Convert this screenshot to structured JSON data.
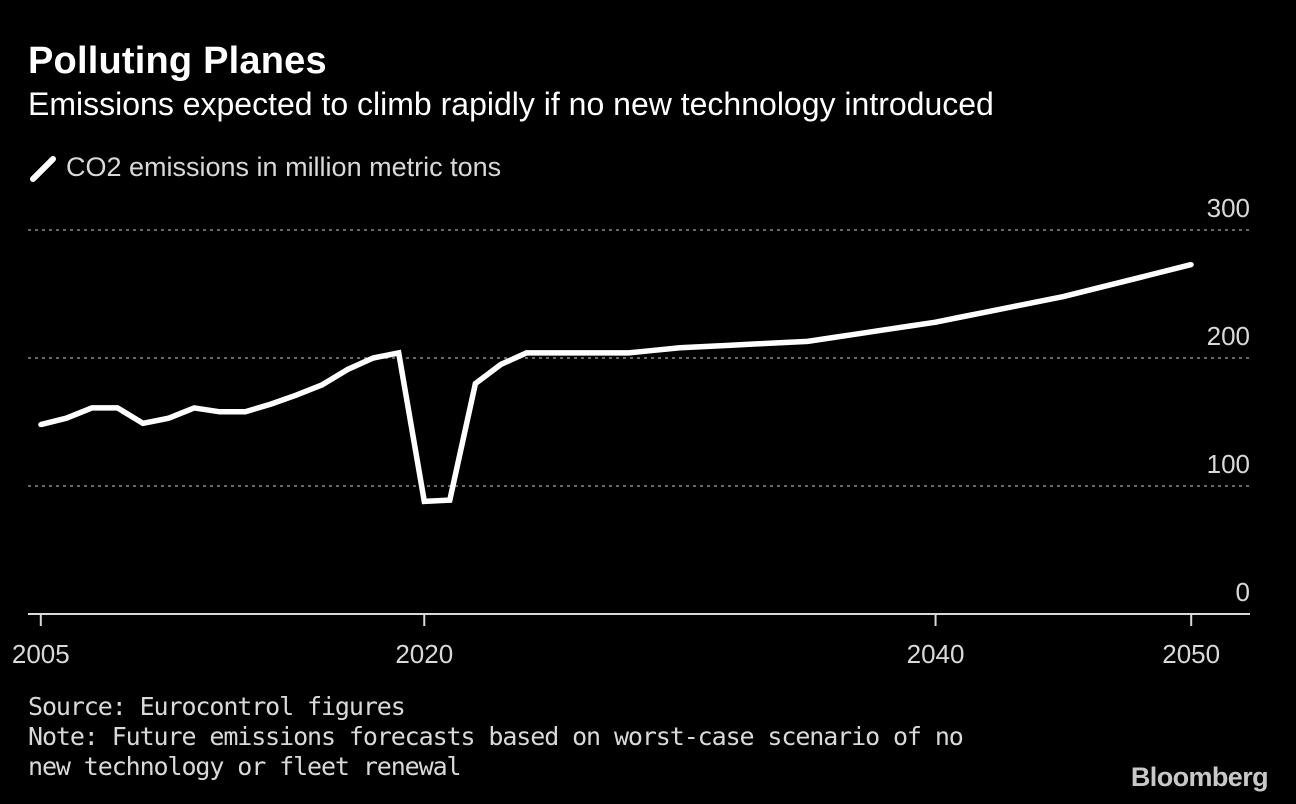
{
  "chart_data": {
    "type": "line",
    "title": "Polluting Planes",
    "subtitle": "Emissions expected to climb rapidly if no new technology introduced",
    "legend": [
      "CO2 emissions in million metric tons"
    ],
    "legend_position": "top-left",
    "x_ticks": [
      2005,
      2020,
      2040,
      2050
    ],
    "y_ticks": [
      0,
      100,
      200,
      300
    ],
    "xlim": [
      2004.5,
      2052.3
    ],
    "ylim": [
      0,
      300
    ],
    "grid": true,
    "color": "#ffffff",
    "series": [
      {
        "name": "CO2 emissions in million metric tons",
        "x": [
          2005,
          2006,
          2007,
          2008,
          2009,
          2010,
          2011,
          2012,
          2013,
          2014,
          2015,
          2016,
          2017,
          2018,
          2019,
          2020,
          2021,
          2022,
          2023,
          2024,
          2025,
          2026,
          2027,
          2028,
          2029,
          2030,
          2031,
          2032,
          2033,
          2034,
          2035,
          2036,
          2037,
          2038,
          2039,
          2040,
          2041,
          2042,
          2043,
          2044,
          2045,
          2046,
          2047,
          2048,
          2049,
          2050
        ],
        "values": [
          148,
          153,
          161,
          161,
          149,
          153,
          161,
          158,
          158,
          164,
          171,
          179,
          191,
          200,
          204,
          88,
          89,
          180,
          195,
          204,
          204,
          204,
          204,
          204,
          206,
          208,
          209,
          210,
          211,
          212,
          213,
          216,
          219,
          222,
          225,
          228,
          232,
          236,
          240,
          244,
          248,
          253,
          258,
          263,
          268,
          273
        ]
      }
    ]
  },
  "footer": {
    "source": "Source: Eurocontrol figures",
    "note": "Note: Future emissions forecasts based on worst-case scenario of no new technology or fleet renewal",
    "brand": "Bloomberg"
  }
}
